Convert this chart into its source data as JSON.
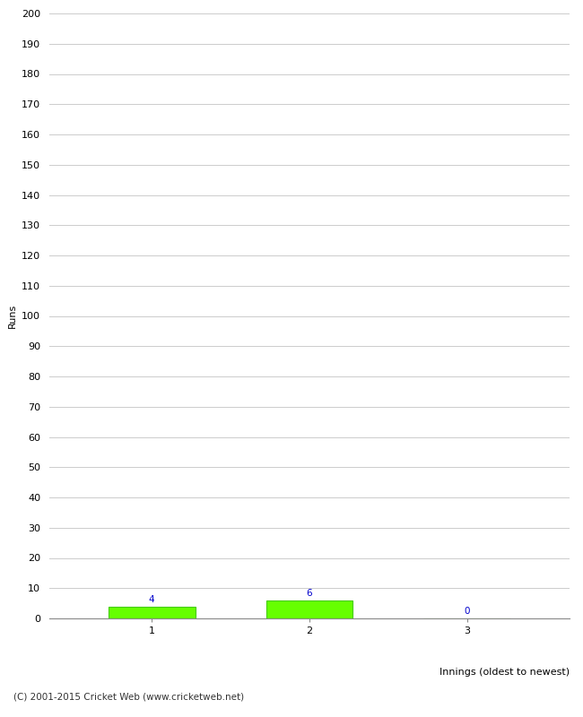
{
  "categories": [
    1,
    2,
    3
  ],
  "values": [
    4,
    6,
    0
  ],
  "bar_color": "#66ff00",
  "bar_edge_color": "#44cc00",
  "ylabel": "Runs",
  "xlabel": "Innings (oldest to newest)",
  "ylim": [
    0,
    200
  ],
  "yticks": [
    0,
    10,
    20,
    30,
    40,
    50,
    60,
    70,
    80,
    90,
    100,
    110,
    120,
    130,
    140,
    150,
    160,
    170,
    180,
    190,
    200
  ],
  "xticks": [
    1,
    2,
    3
  ],
  "value_labels": [
    "4",
    "6",
    "0"
  ],
  "value_label_color": "#0000cc",
  "value_label_fontsize": 7.5,
  "footer_text": "(C) 2001-2015 Cricket Web (www.cricketweb.net)",
  "footer_fontsize": 7.5,
  "grid_color": "#cccccc",
  "background_color": "#ffffff",
  "bar_width": 0.55,
  "tick_fontsize": 8,
  "ylabel_fontsize": 8,
  "xlabel_fontsize": 8
}
